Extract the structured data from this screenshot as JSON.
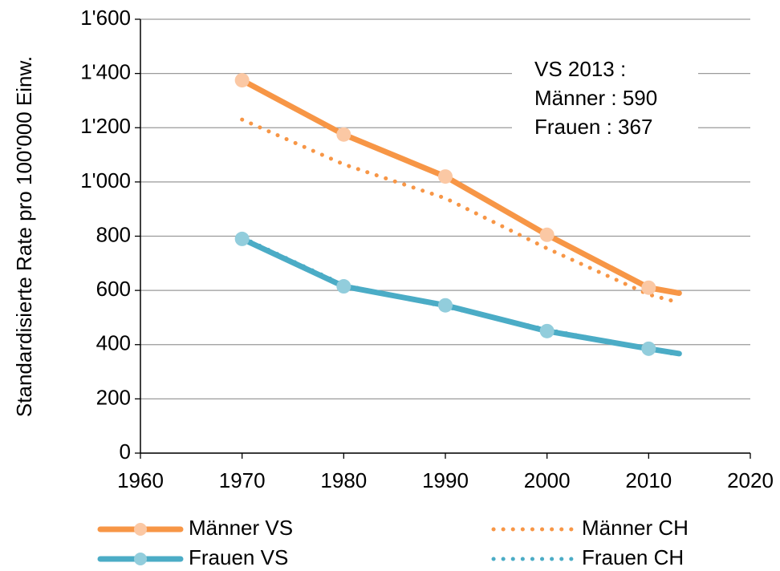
{
  "chart_data": {
    "type": "line",
    "ylabel": "Standardisierte Rate pro 100'000 Einw.",
    "x": [
      1970,
      1980,
      1990,
      2000,
      2010,
      2013
    ],
    "series": [
      {
        "name": "Männer VS",
        "color": "#f79646",
        "marker_color": "#fbc8a4",
        "style": "solid",
        "values": [
          1375,
          1175,
          1020,
          805,
          610,
          590
        ]
      },
      {
        "name": "Männer CH",
        "color": "#f79646",
        "style": "dotted",
        "values": [
          1230,
          1065,
          940,
          755,
          585,
          555
        ]
      },
      {
        "name": "Frauen VS",
        "color": "#4bacc6",
        "marker_color": "#92cddc",
        "style": "solid",
        "values": [
          790,
          615,
          545,
          450,
          385,
          367
        ]
      },
      {
        "name": "Frauen CH",
        "color": "#4bacc6",
        "style": "dotted",
        "values": [
          795,
          620,
          540,
          455,
          385,
          362
        ]
      }
    ],
    "annotation": [
      "VS 2013 :",
      "Männer : 590",
      "Frauen : 367"
    ],
    "xlim": [
      1960,
      2020
    ],
    "xticks": [
      1960,
      1970,
      1980,
      1990,
      2000,
      2010,
      2020
    ],
    "ylim": [
      0,
      1600
    ],
    "yticks": [
      0,
      200,
      400,
      600,
      800,
      {
        "value": 1000,
        "label": "1'000"
      },
      {
        "value": 1200,
        "label": "1'200"
      },
      {
        "value": 1400,
        "label": "1'400"
      },
      {
        "value": 1600,
        "label": "1'600"
      }
    ],
    "grid": true,
    "legend": "bottom"
  }
}
